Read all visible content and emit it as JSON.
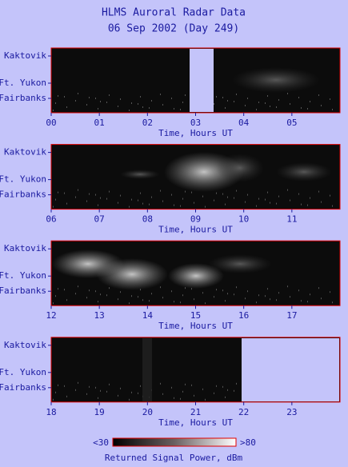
{
  "title": "HLMS Auroral Radar Data",
  "subtitle": "06 Sep 2002 (Day 249)",
  "chart_data": [
    {
      "type": "heatmap",
      "x_label": "Time, Hours UT",
      "categories": [
        "Kaktovik",
        "Ft. Yukon",
        "Fairbanks"
      ],
      "xlim": [
        0,
        6
      ],
      "xticks": [
        {
          "value": 0,
          "label": "00"
        },
        {
          "value": 1,
          "label": "01"
        },
        {
          "value": 2,
          "label": "02"
        },
        {
          "value": 3,
          "label": "03"
        },
        {
          "value": 4,
          "label": "04"
        },
        {
          "value": 5,
          "label": "05"
        }
      ]
    },
    {
      "type": "heatmap",
      "x_label": "Time, Hours UT",
      "categories": [
        "Kaktovik",
        "Ft. Yukon",
        "Fairbanks"
      ],
      "xlim": [
        6,
        12
      ],
      "xticks": [
        {
          "value": 6,
          "label": "06"
        },
        {
          "value": 7,
          "label": "07"
        },
        {
          "value": 8,
          "label": "08"
        },
        {
          "value": 9,
          "label": "09"
        },
        10,
        11
      ]
    },
    {
      "type": "heatmap",
      "x_label": "Time, Hours UT",
      "categories": [
        "Kaktovik",
        "Ft. Yukon",
        "Fairbanks"
      ],
      "xlim": [
        12,
        18
      ],
      "xticks": [
        12,
        13,
        14,
        15,
        16,
        17
      ]
    },
    {
      "type": "heatmap",
      "x_label": "Time, Hours UT",
      "categories": [
        "Kaktovik",
        "Ft. Yukon",
        "Fairbanks"
      ],
      "xlim": [
        18,
        24
      ],
      "xticks": [
        18,
        19,
        20,
        21,
        22,
        23
      ]
    }
  ],
  "colorbar": {
    "label": "Returned Signal Power, dBm",
    "range": [
      {
        "value": 30,
        "label": "<30"
      },
      {
        "value": 80,
        "label": ">80"
      }
    ]
  }
}
